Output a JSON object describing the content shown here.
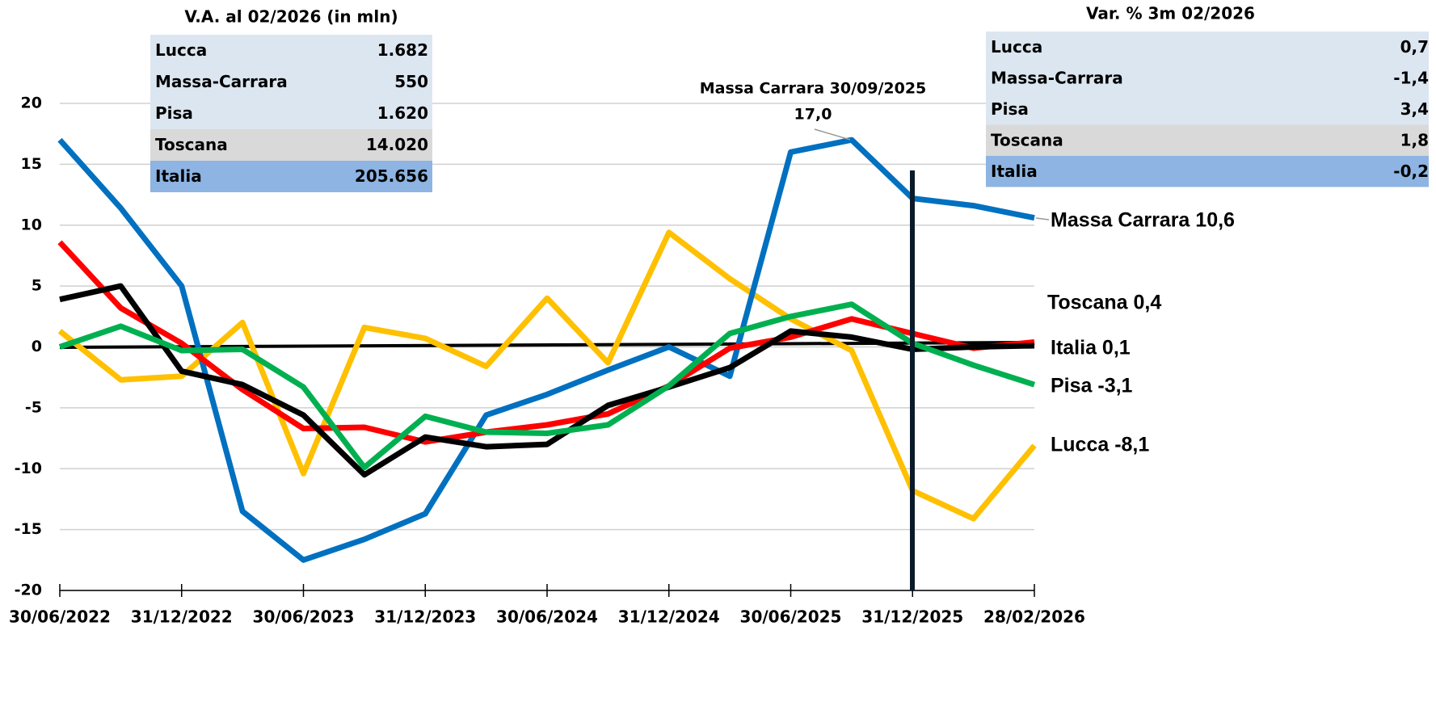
{
  "chart_data": {
    "type": "line",
    "categories": [
      "30/06/2022",
      null,
      "31/12/2022",
      null,
      "30/06/2023",
      null,
      "31/12/2023",
      null,
      "30/06/2024",
      null,
      "31/12/2024",
      null,
      "30/06/2025",
      null,
      "31/12/2025",
      null,
      "28/02/2026"
    ],
    "series": [
      {
        "name": "Lucca",
        "color": "#ffc000",
        "values": [
          1.3,
          -2.7,
          -2.4,
          2.0,
          -10.4,
          1.6,
          0.7,
          -1.6,
          4.0,
          -1.3,
          9.4,
          5.6,
          2.3,
          -0.3,
          -11.8,
          -14.1,
          -8.1
        ]
      },
      {
        "name": "Massa Carrara",
        "color": "#0070c0",
        "values": [
          17.0,
          11.4,
          5.0,
          -13.5,
          -17.5,
          -15.8,
          -13.7,
          -5.6,
          -3.9,
          -1.9,
          0.0,
          -2.4,
          16.0,
          17.0,
          12.2,
          11.6,
          10.6
        ]
      },
      {
        "name": "Toscana",
        "color": "#ff0000",
        "values": [
          8.6,
          3.2,
          0.3,
          -3.5,
          -6.7,
          -6.6,
          -7.8,
          -7.0,
          -6.4,
          -5.5,
          -3.2,
          -0.1,
          0.8,
          2.3,
          1.1,
          -0.1,
          0.4
        ]
      },
      {
        "name": "Italia",
        "color": "#000000",
        "values": [
          3.9,
          5.0,
          -2.0,
          -3.1,
          -5.6,
          -10.5,
          -7.4,
          -8.2,
          -8.0,
          -4.8,
          -3.3,
          -1.7,
          1.3,
          0.8,
          -0.2,
          0.0,
          0.1
        ]
      },
      {
        "name": "Pisa",
        "color": "#00b050",
        "values": [
          0.0,
          1.7,
          -0.3,
          -0.2,
          -3.3,
          -9.9,
          -5.7,
          -7.0,
          -7.1,
          -6.4,
          -3.2,
          1.1,
          2.5,
          3.5,
          0.3,
          -1.5,
          -3.1
        ]
      }
    ],
    "ylim": [
      -20,
      20
    ],
    "yticks": [
      -20,
      -15,
      -10,
      -5,
      0,
      5,
      10,
      15,
      20
    ],
    "grid": true,
    "annotations": [
      "Massa Carrara 30/09/2025",
      "17,0"
    ],
    "end_labels": [
      "Massa Carrara 10,6",
      "Toscana 0,4",
      "Italia 0,1",
      "Pisa -3,1",
      "Lucca -8,1"
    ]
  },
  "tables": [
    {
      "title": "V.A. al 02/2026 (in mln)",
      "rows": [
        [
          "Lucca",
          "1.682"
        ],
        [
          "Massa-Carrara",
          "550"
        ],
        [
          "Pisa",
          "1.620"
        ],
        [
          "Toscana",
          "14.020"
        ],
        [
          "Italia",
          "205.656"
        ]
      ]
    },
    {
      "title": "Var. % 3m 02/2026",
      "rows": [
        [
          "Lucca",
          "0,7"
        ],
        [
          "Massa-Carrara",
          "-1,4"
        ],
        [
          "Pisa",
          "3,4"
        ],
        [
          "Toscana",
          "1,8"
        ],
        [
          "Italia",
          "-0,2"
        ]
      ]
    }
  ]
}
